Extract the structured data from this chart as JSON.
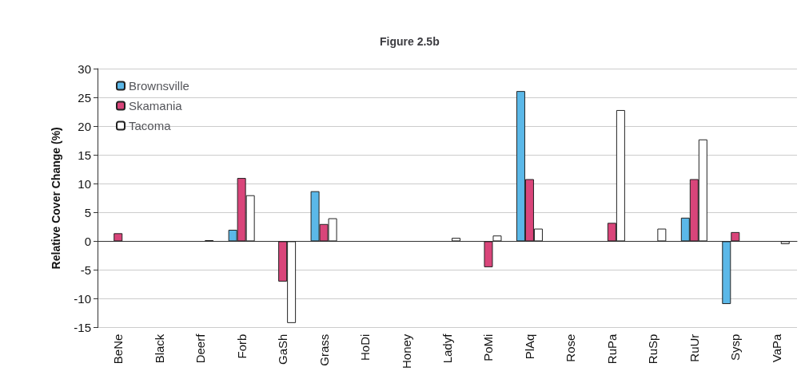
{
  "chart_data": {
    "type": "bar",
    "title": "Figure 2.5b",
    "ylabel": "Relative Cover Change (%)",
    "categories": [
      "BeNe",
      "Black",
      "Deerf",
      "Forb",
      "GaSh",
      "Grass",
      "HoDi",
      "Honey",
      "Ladyf",
      "PoMi",
      "PlAq",
      "Rose",
      "RuPa",
      "RuSp",
      "RuUr",
      "Sysp",
      "VaPa"
    ],
    "series": [
      {
        "name": "Brownsville",
        "color": "#5bb8e8",
        "values": [
          0,
          0,
          0,
          2,
          0,
          8.7,
          0,
          0,
          0,
          0,
          26.1,
          0,
          0,
          0,
          4.1,
          -10.9,
          0
        ]
      },
      {
        "name": "Skamania",
        "color": "#d9457a",
        "values": [
          1.4,
          0,
          0,
          11,
          -7,
          3,
          0,
          0,
          0,
          -4.5,
          10.8,
          0,
          3.2,
          0,
          10.8,
          1.6,
          0
        ]
      },
      {
        "name": "Tacoma",
        "color": "#ffffff",
        "values": [
          0,
          0,
          0.2,
          8,
          -14.2,
          4,
          0,
          0,
          0.6,
          1,
          2.2,
          0,
          22.8,
          2.2,
          17.7,
          0,
          -0.5
        ]
      }
    ],
    "ylim": [
      -15,
      30
    ],
    "yticks": [
      -15,
      -10,
      -5,
      0,
      5,
      10,
      15,
      20,
      25,
      30
    ],
    "grid": "y",
    "legend": "top left"
  }
}
